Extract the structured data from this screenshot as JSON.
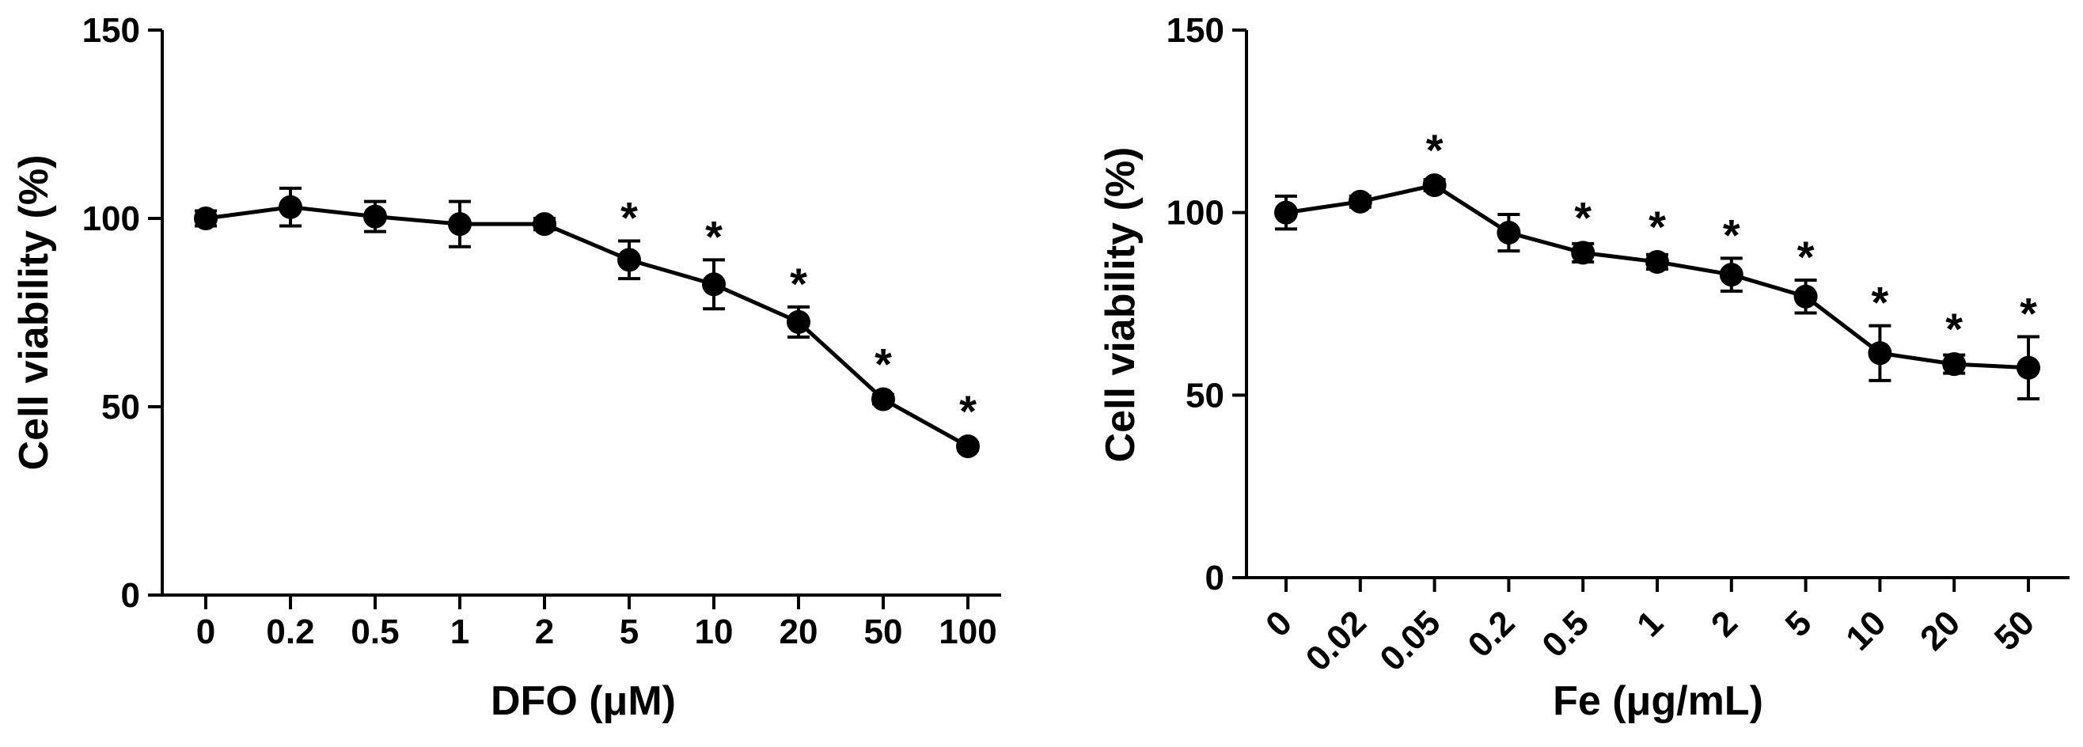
{
  "chart_data": [
    {
      "type": "line",
      "title": "",
      "xlabel": "DFO (μM)",
      "ylabel": "Cell viability (%)",
      "ylim": [
        0,
        150
      ],
      "yticks": [
        "0",
        "50",
        "100",
        "150"
      ],
      "categories": [
        "0",
        "0.2",
        "0.5",
        "1",
        "2",
        "5",
        "10",
        "20",
        "50",
        "100"
      ],
      "values": [
        100,
        103,
        100.5,
        98.5,
        98.5,
        89,
        82.5,
        72.5,
        52,
        39.5
      ],
      "errors": [
        2,
        5,
        4,
        6,
        1.5,
        5,
        6.5,
        4,
        1.2,
        1
      ],
      "significance": [
        "",
        "",
        "",
        "",
        "",
        "*",
        "*",
        "*",
        "*",
        "*"
      ],
      "grid": false,
      "tick_rotation": 0
    },
    {
      "type": "line",
      "title": "",
      "xlabel": "Fe (μg/mL)",
      "ylabel": "Cell viability (%)",
      "ylim": [
        0,
        150
      ],
      "yticks": [
        "0",
        "50",
        "100",
        "150"
      ],
      "categories": [
        "0",
        "0.02",
        "0.05",
        "0.2",
        "0.5",
        "1",
        "2",
        "5",
        "10",
        "20",
        "50"
      ],
      "values": [
        100,
        103,
        107.5,
        94.5,
        89,
        86.5,
        83,
        77,
        61.5,
        58.5,
        57.5
      ],
      "errors": [
        4.5,
        1.5,
        1.5,
        5,
        2.5,
        2,
        4.5,
        4.5,
        7.5,
        2.5,
        8.5
      ],
      "significance": [
        "",
        "",
        "*",
        "",
        "*",
        "*",
        "*",
        "*",
        "*",
        "*",
        "*"
      ],
      "grid": false,
      "tick_rotation": -45
    }
  ]
}
